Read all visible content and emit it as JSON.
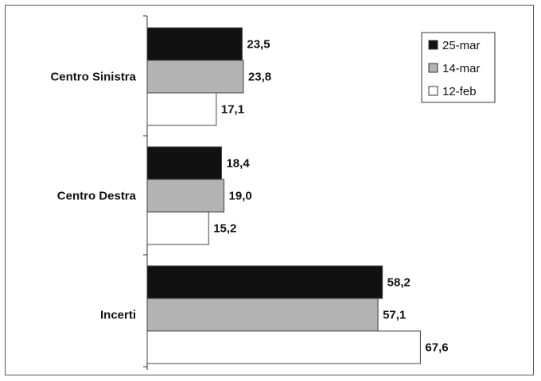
{
  "chart_data": {
    "type": "bar",
    "orientation": "horizontal",
    "categories": [
      "Centro Sinistra",
      "Centro Destra",
      "Incerti"
    ],
    "series": [
      {
        "name": "25-mar",
        "values": [
          23.5,
          18.4,
          58.2
        ],
        "color": "#111111"
      },
      {
        "name": "14-mar",
        "values": [
          23.8,
          19.0,
          57.1
        ],
        "color": "#b3b3b3"
      },
      {
        "name": "12-feb",
        "values": [
          17.1,
          15.2,
          67.6
        ],
        "color": "#ffffff"
      }
    ],
    "value_labels": [
      [
        "23,5",
        "23,8",
        "17,1"
      ],
      [
        "18,4",
        "19,0",
        "15,2"
      ],
      [
        "58,2",
        "57,1",
        "67,6"
      ]
    ],
    "legend": {
      "position": "top-right"
    },
    "grid": false,
    "title": "",
    "xlabel": "",
    "ylabel": ""
  }
}
